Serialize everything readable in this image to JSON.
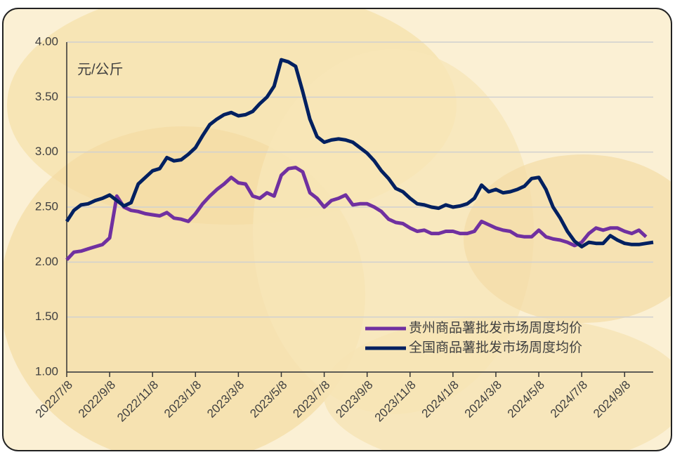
{
  "chart_data": {
    "type": "line",
    "annotation": "元/公斤",
    "categories": [
      "2022/7/8",
      null,
      null,
      null,
      null,
      null,
      "2022/9/8",
      null,
      null,
      null,
      null,
      null,
      "2022/11/8",
      null,
      null,
      null,
      null,
      null,
      "2023/1/8",
      null,
      null,
      null,
      null,
      null,
      "2023/3/8",
      null,
      null,
      null,
      null,
      null,
      "2023/5/8",
      null,
      null,
      null,
      null,
      null,
      "2023/7/8",
      null,
      null,
      null,
      null,
      null,
      "2023/9/8",
      null,
      null,
      null,
      null,
      null,
      "2023/11/8",
      null,
      null,
      null,
      null,
      null,
      "2024/1/8",
      null,
      null,
      null,
      null,
      null,
      "2024/3/8",
      null,
      null,
      null,
      null,
      null,
      "2024/5/8",
      null,
      null,
      null,
      null,
      null,
      "2024/7/8",
      null,
      null,
      null,
      null,
      null,
      "2024/9/8",
      null,
      null,
      null,
      null
    ],
    "series": [
      {
        "name": "贵州商品薯批发市场周度均价",
        "color": "#7030a0",
        "values": [
          2.02,
          2.09,
          2.1,
          2.12,
          2.14,
          2.16,
          2.22,
          2.6,
          2.5,
          2.47,
          2.46,
          2.44,
          2.43,
          2.42,
          2.45,
          2.4,
          2.39,
          2.37,
          2.44,
          2.53,
          2.6,
          2.66,
          2.71,
          2.77,
          2.72,
          2.71,
          2.6,
          2.58,
          2.63,
          2.6,
          2.79,
          2.85,
          2.86,
          2.82,
          2.63,
          2.58,
          2.5,
          2.56,
          2.58,
          2.61,
          2.52,
          2.53,
          2.53,
          2.5,
          2.46,
          2.39,
          2.36,
          2.35,
          2.31,
          2.28,
          2.29,
          2.26,
          2.26,
          2.28,
          2.28,
          2.26,
          2.26,
          2.28,
          2.37,
          2.34,
          2.31,
          2.29,
          2.28,
          2.24,
          2.23,
          2.23,
          2.29,
          2.23,
          2.21,
          2.2,
          2.18,
          2.15,
          2.18,
          2.26,
          2.31,
          2.29,
          2.31,
          2.31,
          2.28,
          2.26,
          2.29,
          2.23,
          null
        ]
      },
      {
        "name": "全国商品薯批发市场周度均价",
        "color": "#002060",
        "values": [
          2.37,
          2.47,
          2.52,
          2.53,
          2.56,
          2.58,
          2.61,
          2.56,
          2.51,
          2.54,
          2.71,
          2.77,
          2.83,
          2.85,
          2.95,
          2.92,
          2.93,
          2.98,
          3.04,
          3.15,
          3.25,
          3.3,
          3.34,
          3.36,
          3.33,
          3.34,
          3.37,
          3.44,
          3.5,
          3.6,
          3.84,
          3.82,
          3.78,
          3.55,
          3.3,
          3.14,
          3.09,
          3.11,
          3.12,
          3.11,
          3.09,
          3.04,
          2.99,
          2.92,
          2.83,
          2.76,
          2.67,
          2.64,
          2.58,
          2.53,
          2.52,
          2.5,
          2.49,
          2.52,
          2.5,
          2.51,
          2.53,
          2.58,
          2.7,
          2.64,
          2.66,
          2.63,
          2.64,
          2.66,
          2.69,
          2.76,
          2.77,
          2.66,
          2.5,
          2.4,
          2.28,
          2.19,
          2.14,
          2.18,
          2.17,
          2.17,
          2.24,
          2.2,
          2.17,
          2.16,
          2.16,
          2.17,
          2.18
        ]
      }
    ],
    "ylim": [
      1,
      4
    ],
    "yticks": [
      {
        "value": 1,
        "label": "1.00"
      },
      {
        "value": 1.5,
        "label": "1.50"
      },
      {
        "value": 2,
        "label": "2.00"
      },
      {
        "value": 2.5,
        "label": "2.50"
      },
      {
        "value": 3,
        "label": "3.00"
      },
      {
        "value": 3.5,
        "label": "3.50"
      },
      {
        "value": 4,
        "label": "4.00"
      }
    ],
    "grid": true,
    "legend": "lower-right"
  }
}
